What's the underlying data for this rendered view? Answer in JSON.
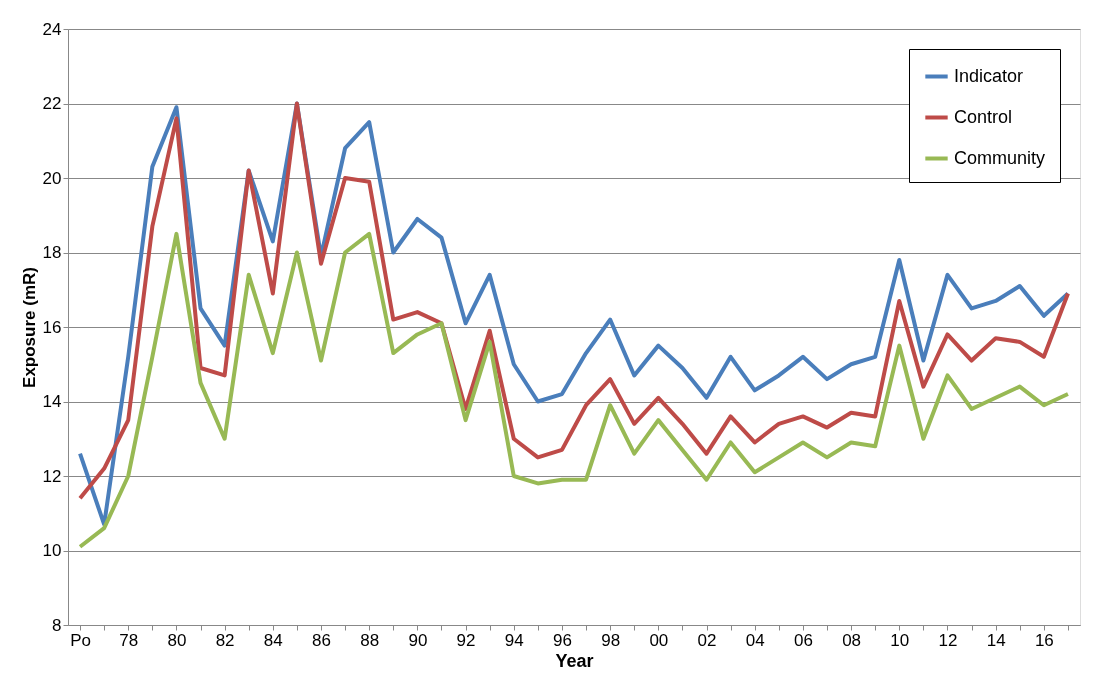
{
  "chart_data": {
    "type": "line",
    "xlabel": "Year",
    "ylabel": "Exposure (mR)",
    "categories": [
      "Po",
      null,
      "78",
      null,
      "80",
      null,
      "82",
      null,
      "84",
      null,
      "86",
      null,
      "88",
      null,
      "90",
      null,
      "92",
      null,
      "94",
      null,
      "96",
      null,
      "98",
      null,
      "00",
      null,
      "02",
      null,
      "04",
      null,
      "06",
      null,
      "08",
      null,
      "10",
      null,
      "12",
      null,
      "14",
      null,
      "16",
      null
    ],
    "series": [
      {
        "name": "Indicator",
        "color": "#4a7ebb",
        "values": [
          12.6,
          10.7,
          15.2,
          20.3,
          21.9,
          16.5,
          15.5,
          20.2,
          18.3,
          22.0,
          17.9,
          20.8,
          21.5,
          18.0,
          18.9,
          18.4,
          16.1,
          17.4,
          15.0,
          14.0,
          14.2,
          15.3,
          16.2,
          14.7,
          15.5,
          14.9,
          14.1,
          15.2,
          14.3,
          14.7,
          15.2,
          14.6,
          15.0,
          15.2,
          17.8,
          15.1,
          17.4,
          16.5,
          16.7,
          17.1,
          16.3,
          16.9
        ]
      },
      {
        "name": "Control",
        "color": "#be4b48",
        "values": [
          11.4,
          12.2,
          13.5,
          18.7,
          21.6,
          14.9,
          14.7,
          20.2,
          16.9,
          22.0,
          17.7,
          20.0,
          19.9,
          16.2,
          16.4,
          16.1,
          13.8,
          15.9,
          13.0,
          12.5,
          12.7,
          13.9,
          14.6,
          13.4,
          14.1,
          13.4,
          12.6,
          13.6,
          12.9,
          13.4,
          13.6,
          13.3,
          13.7,
          13.6,
          16.7,
          14.4,
          15.8,
          15.1,
          15.7,
          15.6,
          15.2,
          16.9
        ]
      },
      {
        "name": "Community",
        "color": "#98b954",
        "values": [
          10.1,
          10.6,
          12.0,
          15.2,
          18.5,
          14.5,
          13.0,
          17.4,
          15.3,
          18.0,
          15.1,
          18.0,
          18.5,
          15.3,
          15.8,
          16.1,
          13.5,
          15.6,
          12.0,
          11.8,
          11.9,
          11.9,
          13.9,
          12.6,
          13.5,
          12.7,
          11.9,
          12.9,
          12.1,
          12.5,
          12.9,
          12.5,
          12.9,
          12.8,
          15.5,
          13.0,
          14.7,
          13.8,
          14.1,
          14.4,
          13.9,
          14.2
        ]
      }
    ],
    "ylim": [
      8,
      24
    ],
    "yticks": [
      8,
      10,
      12,
      14,
      16,
      18,
      20,
      22,
      24
    ],
    "grid": "y",
    "legend": "top right",
    "marker": "none",
    "line_style": "solid"
  }
}
